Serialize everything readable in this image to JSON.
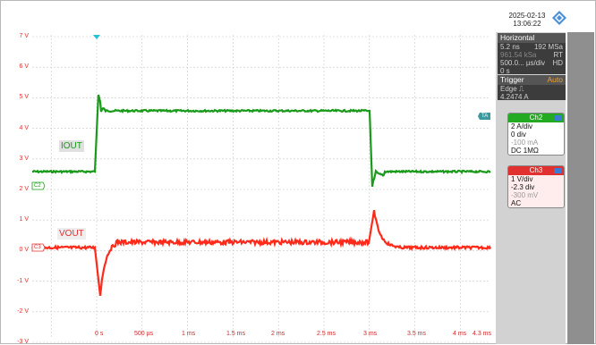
{
  "header": {
    "date": "2025-02-13",
    "time": "13:06:22"
  },
  "y_axis_labels": [
    "7 V",
    "6 V",
    "5 V",
    "4 V",
    "3 V",
    "2 V",
    "1 V",
    "0 V",
    "-1 V",
    "-2 V",
    "-3 V"
  ],
  "x_axis_labels": [
    "0 s",
    "500 µs",
    "1 ms",
    "1.5 ms",
    "2 ms",
    "2.5 ms",
    "3 ms",
    "3.5 ms",
    "4 ms",
    "4.3 ms"
  ],
  "traces": {
    "iout_label": "IOUT",
    "vout_label": "VOUT",
    "iout_color": "#1a9a1a",
    "vout_color": "#ff2a1a"
  },
  "horizontal": {
    "title": "Horizontal",
    "row1_left": "5.2 ns",
    "row1_right": "192 MSa",
    "row2_left": "961.54 kSa",
    "row2_right": "RT",
    "row3_left": "500.0... µs/div",
    "row3_right": "HD",
    "row4_left": "0 s"
  },
  "trigger": {
    "title": "Trigger",
    "mode": "Auto",
    "type": "Edge",
    "level": "4.2474 A"
  },
  "ch2": {
    "title": "Ch2",
    "scale": "2 A/div",
    "offset_div": "0 div",
    "offset": "-100 mA",
    "coupling": "DC 1MΩ"
  },
  "ch3": {
    "title": "Ch3",
    "scale": "1 V/div",
    "offset_div": "-2.3 div",
    "offset": "-300 mV",
    "coupling": "AC"
  },
  "markers": {
    "ch2_marker": "C2",
    "ch3_marker": "C3",
    "trigger_marker": "TA"
  }
}
